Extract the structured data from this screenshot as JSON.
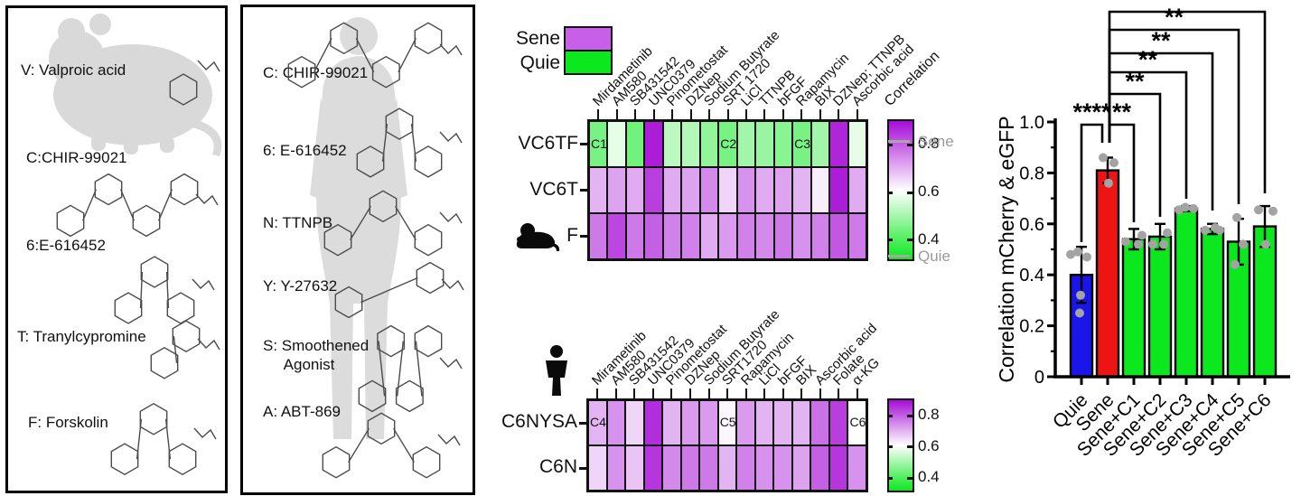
{
  "figure": {
    "mouse_panel": {
      "compounds": [
        "V: Valproic acid",
        "C:CHIR-99021",
        "6:E-616452",
        "T: Tranylcypromine",
        "F: Forskolin"
      ]
    },
    "human_panel": {
      "compounds": [
        "C: CHIR-99021",
        "6: E-616452",
        "N: TTNPB",
        "Y: Y-27632",
        "S: Smoothened\n     Agonist",
        "A: ABT-869"
      ]
    },
    "legend": {
      "items": [
        {
          "label": "Sene",
          "color": "#c75fe8"
        },
        {
          "label": "Quie",
          "color": "#0be81e"
        }
      ]
    }
  },
  "chart_data": [
    {
      "type": "heatmap",
      "organism_icon": "mouse",
      "columns": [
        "Mirdametinib",
        "AM580",
        "SB431542",
        "UNC0379",
        "Pinometostat",
        "DZNep",
        "Sodium Butyrate",
        "SRT 1720",
        "LiCl",
        "TTNPB",
        "bFGF",
        "Rapamycin",
        "BIX",
        "DZNep; TTNPB",
        "Ascorbic acid"
      ],
      "rows": [
        "VC6TF",
        "VC6T",
        "F"
      ],
      "values": [
        [
          0.45,
          0.58,
          0.44,
          0.88,
          0.53,
          0.52,
          0.48,
          0.45,
          0.5,
          0.49,
          0.47,
          0.45,
          0.5,
          0.87,
          0.58
        ],
        [
          0.7,
          0.72,
          0.71,
          0.84,
          0.71,
          0.72,
          0.75,
          0.66,
          0.74,
          0.71,
          0.72,
          0.7,
          0.63,
          0.88,
          0.71
        ],
        [
          0.77,
          0.83,
          0.77,
          0.8,
          0.76,
          0.76,
          0.71,
          0.73,
          0.76,
          0.75,
          0.77,
          0.74,
          0.76,
          0.81,
          0.77
        ]
      ],
      "cell_annotations": [
        {
          "row": 0,
          "col": 0,
          "text": "C1"
        },
        {
          "row": 0,
          "col": 7,
          "text": "C2"
        },
        {
          "row": 0,
          "col": 11,
          "text": "C3"
        }
      ],
      "colorbar": {
        "title": "Correlation",
        "tick_labels": [
          "0.8",
          "0.6",
          "0.4"
        ],
        "ticks": [
          0.8,
          0.6,
          0.4
        ],
        "vmin": 0.32,
        "vmax": 0.9,
        "low_color": "#0be81e",
        "mid_color": "#ffffff",
        "high_color": "#a50cd6",
        "annotations": [
          {
            "label": "Sene",
            "value": 0.815
          },
          {
            "label": "Quie",
            "value": 0.335
          }
        ]
      }
    },
    {
      "type": "heatmap",
      "organism_icon": "human",
      "columns": [
        "Mirametinib",
        "AM580",
        "SB431542",
        "UNC0379",
        "Pinometostat",
        "DZNep",
        "Sodium Butyrate",
        "SRT1720",
        "Rapamycin",
        "LiCl",
        "bFGF",
        "BIX",
        "Ascorbic acid",
        "Folate",
        "α-KG"
      ],
      "rows": [
        "C6NYSA",
        "C6N"
      ],
      "values": [
        [
          0.7,
          0.74,
          0.66,
          0.86,
          0.7,
          0.73,
          0.73,
          0.62,
          0.73,
          0.7,
          0.7,
          0.7,
          0.78,
          0.84,
          0.61
        ],
        [
          0.66,
          0.74,
          0.68,
          0.85,
          0.75,
          0.77,
          0.77,
          0.7,
          0.76,
          0.74,
          0.74,
          0.72,
          0.8,
          0.85,
          0.74
        ]
      ],
      "cell_annotations": [
        {
          "row": 0,
          "col": 0,
          "text": "C4"
        },
        {
          "row": 0,
          "col": 7,
          "text": "C5"
        },
        {
          "row": 0,
          "col": 14,
          "text": "C6"
        }
      ],
      "colorbar": {
        "title": "",
        "tick_labels": [
          "0.8",
          "0.6",
          "0.4"
        ],
        "ticks": [
          0.8,
          0.6,
          0.4
        ],
        "vmin": 0.32,
        "vmax": 0.9,
        "low_color": "#0be81e",
        "mid_color": "#ffffff",
        "high_color": "#a50cd6",
        "annotations": []
      }
    },
    {
      "type": "bar",
      "categories": [
        "Quie",
        "Sene",
        "Sene+C1",
        "Sene+C2",
        "Sene+C3",
        "Sene+C4",
        "Sene+C5",
        "Sene+C6"
      ],
      "values": [
        0.4,
        0.81,
        0.54,
        0.55,
        0.66,
        0.58,
        0.53,
        0.59
      ],
      "errors": [
        0.11,
        0.05,
        0.04,
        0.05,
        0.01,
        0.02,
        0.09,
        0.08
      ],
      "bar_colors": [
        "#1a15e8",
        "#ee1414",
        "#0be81e",
        "#0be81e",
        "#0be81e",
        "#0be81e",
        "#0be81e",
        "#0be81e"
      ],
      "scatter_points": [
        [
          0.48,
          0.49,
          0.47,
          0.32,
          0.25
        ],
        [
          0.86,
          0.84,
          0.76
        ],
        [
          0.53,
          0.52,
          0.555
        ],
        [
          0.52,
          0.52,
          0.565
        ],
        [
          0.655,
          0.665,
          0.66
        ],
        [
          0.575,
          0.585,
          0.575
        ],
        [
          0.44,
          0.52,
          0.625
        ],
        [
          0.52,
          0.655,
          0.65
        ]
      ],
      "point_color": "#a3a3a3",
      "ylabel": "Correlation mCherry & eGFP",
      "ylim": [
        0,
        1.0
      ],
      "ytick_labels": [
        "0",
        "0.2",
        "0.4",
        "0.6",
        "0.8",
        "1.0"
      ],
      "significance": [
        {
          "group1": "Quie",
          "group2": "Sene",
          "label": "****"
        },
        {
          "group1": "Sene",
          "group2": "Sene+C1",
          "label": "**"
        },
        {
          "group1": "Sene",
          "group2": "Sene+C2",
          "label": "**"
        },
        {
          "group1": "Sene",
          "group2": "Sene+C3",
          "label": "**"
        },
        {
          "group1": "Sene",
          "group2": "Sene+C4",
          "label": "**"
        },
        {
          "group1": "Sene",
          "group2": "Sene+C5",
          "label": "**"
        },
        {
          "group1": "Sene",
          "group2": "Sene+C6",
          "label": "*"
        }
      ]
    }
  ]
}
